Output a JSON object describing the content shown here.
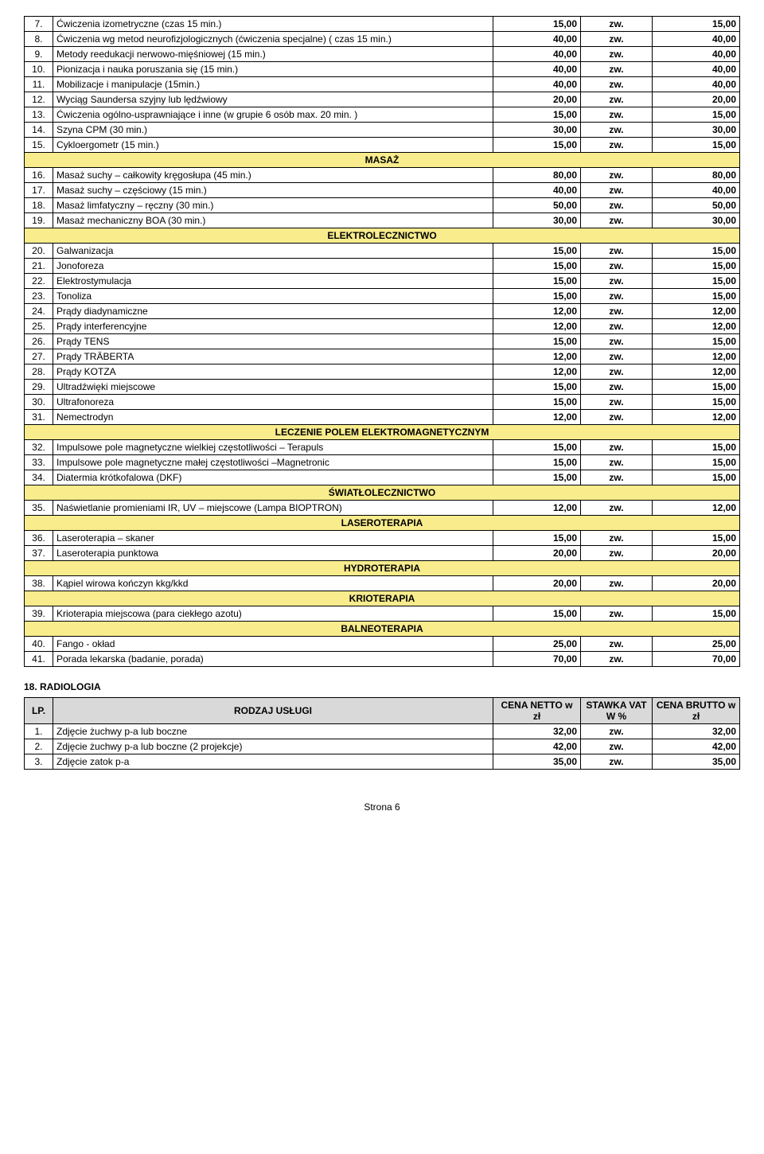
{
  "main": {
    "rows": [
      {
        "no": "7.",
        "desc": "Ćwiczenia izometryczne\n(czas 15 min.)",
        "v1": "15,00",
        "v2": "zw.",
        "v3": "15,00"
      },
      {
        "no": "8.",
        "desc": "Ćwiczenia wg metod neurofizjologicznych (ćwiczenia specjalne) ( czas 15 min.)",
        "v1": "40,00",
        "v2": "zw.",
        "v3": "40,00"
      },
      {
        "no": "9.",
        "desc": "Metody reedukacji nerwowo-mięśniowej (15 min.)",
        "v1": "40,00",
        "v2": "zw.",
        "v3": "40,00"
      },
      {
        "no": "10.",
        "desc": "Pionizacja i nauka poruszania się (15 min.)",
        "v1": "40,00",
        "v2": "zw.",
        "v3": "40,00"
      },
      {
        "no": "11.",
        "desc": "Mobilizacje i manipulacje (15min.)",
        "v1": "40,00",
        "v2": "zw.",
        "v3": "40,00"
      },
      {
        "no": "12.",
        "desc": "Wyciąg Saundersa szyjny lub lędźwiowy",
        "v1": "20,00",
        "v2": "zw.",
        "v3": "20,00"
      },
      {
        "no": "13.",
        "desc": "Ćwiczenia ogólno-usprawniające i inne\n(w grupie 6 osób max. 20 min. )",
        "v1": "15,00",
        "v2": "zw.",
        "v3": "15,00"
      },
      {
        "no": "14.",
        "desc": "Szyna CPM (30 min.)",
        "v1": "30,00",
        "v2": "zw.",
        "v3": "30,00"
      },
      {
        "no": "15.",
        "desc": "Cykloergometr (15 min.)",
        "v1": "15,00",
        "v2": "zw.",
        "v3": "15,00"
      },
      {
        "section": "MASAŻ"
      },
      {
        "no": "16.",
        "desc": "Masaż suchy – całkowity kręgosłupa (45 min.)",
        "v1": "80,00",
        "v2": "zw.",
        "v3": "80,00"
      },
      {
        "no": "17.",
        "desc": "Masaż suchy – częściowy (15 min.)",
        "v1": "40,00",
        "v2": "zw.",
        "v3": "40,00"
      },
      {
        "no": "18.",
        "desc": "Masaż limfatyczny – ręczny (30 min.)",
        "v1": "50,00",
        "v2": "zw.",
        "v3": "50,00"
      },
      {
        "no": "19.",
        "desc": "Masaż mechaniczny BOA (30 min.)",
        "v1": "30,00",
        "v2": "zw.",
        "v3": "30,00"
      },
      {
        "section": "ELEKTROLECZNICTWO"
      },
      {
        "no": "20.",
        "desc": "Galwanizacja",
        "v1": "15,00",
        "v2": "zw.",
        "v3": "15,00"
      },
      {
        "no": "21.",
        "desc": "Jonoforeza",
        "v1": "15,00",
        "v2": "zw.",
        "v3": "15,00"
      },
      {
        "no": "22.",
        "desc": "Elektrostymulacja",
        "v1": "15,00",
        "v2": "zw.",
        "v3": "15,00"
      },
      {
        "no": "23.",
        "desc": "Tonoliza",
        "v1": "15,00",
        "v2": "zw.",
        "v3": "15,00"
      },
      {
        "no": "24.",
        "desc": "Prądy diadynamiczne",
        "v1": "12,00",
        "v2": "zw.",
        "v3": "12,00"
      },
      {
        "no": "25.",
        "desc": "Prądy interferencyjne",
        "v1": "12,00",
        "v2": "zw.",
        "v3": "12,00"
      },
      {
        "no": "26.",
        "desc": "Prądy TENS",
        "v1": "15,00",
        "v2": "zw.",
        "v3": "15,00"
      },
      {
        "no": "27.",
        "desc": "Prądy TRÄBERTA",
        "v1": "12,00",
        "v2": "zw.",
        "v3": "12,00"
      },
      {
        "no": "28.",
        "desc": "Prądy KOTZA",
        "v1": "12,00",
        "v2": "zw.",
        "v3": "12,00"
      },
      {
        "no": "29.",
        "desc": "Ultradźwięki miejscowe",
        "v1": "15,00",
        "v2": "zw.",
        "v3": "15,00"
      },
      {
        "no": "30.",
        "desc": "Ultrafonoreza",
        "v1": "15,00",
        "v2": "zw.",
        "v3": "15,00"
      },
      {
        "no": "31.",
        "desc": "Nemectrodyn",
        "v1": "12,00",
        "v2": "zw.",
        "v3": "12,00"
      },
      {
        "section": "LECZENIE POLEM ELEKTROMAGNETYCZNYM"
      },
      {
        "no": "32.",
        "desc": "Impulsowe pole magnetyczne wielkiej częstotliwości – Terapuls",
        "v1": "15,00",
        "v2": "zw.",
        "v3": "15,00"
      },
      {
        "no": "33.",
        "desc": "Impulsowe pole magnetyczne małej częstotliwości –Magnetronic",
        "v1": "15,00",
        "v2": "zw.",
        "v3": "15,00"
      },
      {
        "no": "34.",
        "desc": "Diatermia krótkofalowa (DKF)",
        "v1": "15,00",
        "v2": "zw.",
        "v3": "15,00"
      },
      {
        "section": "ŚWIATŁOLECZNICTWO"
      },
      {
        "no": "35.",
        "desc": "Naświetlanie promieniami IR, UV – miejscowe (Lampa BIOPTRON)",
        "v1": "12,00",
        "v2": "zw.",
        "v3": "12,00"
      },
      {
        "section": "LASEROTERAPIA"
      },
      {
        "no": "36.",
        "desc": "Laseroterapia – skaner",
        "v1": "15,00",
        "v2": "zw.",
        "v3": "15,00"
      },
      {
        "no": "37.",
        "desc": "Laseroterapia punktowa",
        "v1": "20,00",
        "v2": "zw.",
        "v3": "20,00"
      },
      {
        "section": "HYDROTERAPIA"
      },
      {
        "no": "38.",
        "desc": "Kąpiel wirowa kończyn kkg/kkd",
        "v1": "20,00",
        "v2": "zw.",
        "v3": "20,00"
      },
      {
        "section": "KRIOTERAPIA"
      },
      {
        "no": "39.",
        "desc": "Krioterapia miejscowa (para ciekłego azotu)",
        "v1": "15,00",
        "v2": "zw.",
        "v3": "15,00"
      },
      {
        "section": "BALNEOTERAPIA"
      },
      {
        "no": "40.",
        "desc": "Fango - okład",
        "v1": "25,00",
        "v2": "zw.",
        "v3": "25,00"
      },
      {
        "no": "41.",
        "desc": "Porada lekarska (badanie, porada)",
        "v1": "70,00",
        "v2": "zw.",
        "v3": "70,00"
      }
    ]
  },
  "section2": {
    "title": "18. RADIOLOGIA",
    "headers": {
      "lp": "LP.",
      "desc": "RODZAJ USŁUGI",
      "c1": "CENA NETTO w zł",
      "c2": "STAWKA VAT W %",
      "c3": "CENA BRUTTO w zł"
    },
    "rows": [
      {
        "no": "1.",
        "desc": "Zdjęcie żuchwy p-a lub boczne",
        "v1": "32,00",
        "v2": "zw.",
        "v3": "32,00"
      },
      {
        "no": "2.",
        "desc": "Zdjęcie żuchwy p-a lub boczne (2 projekcje)",
        "v1": "42,00",
        "v2": "zw.",
        "v3": "42,00"
      },
      {
        "no": "3.",
        "desc": "Zdjęcie zatok p-a",
        "v1": "35,00",
        "v2": "zw.",
        "v3": "35,00"
      }
    ]
  },
  "footer": "Strona 6"
}
